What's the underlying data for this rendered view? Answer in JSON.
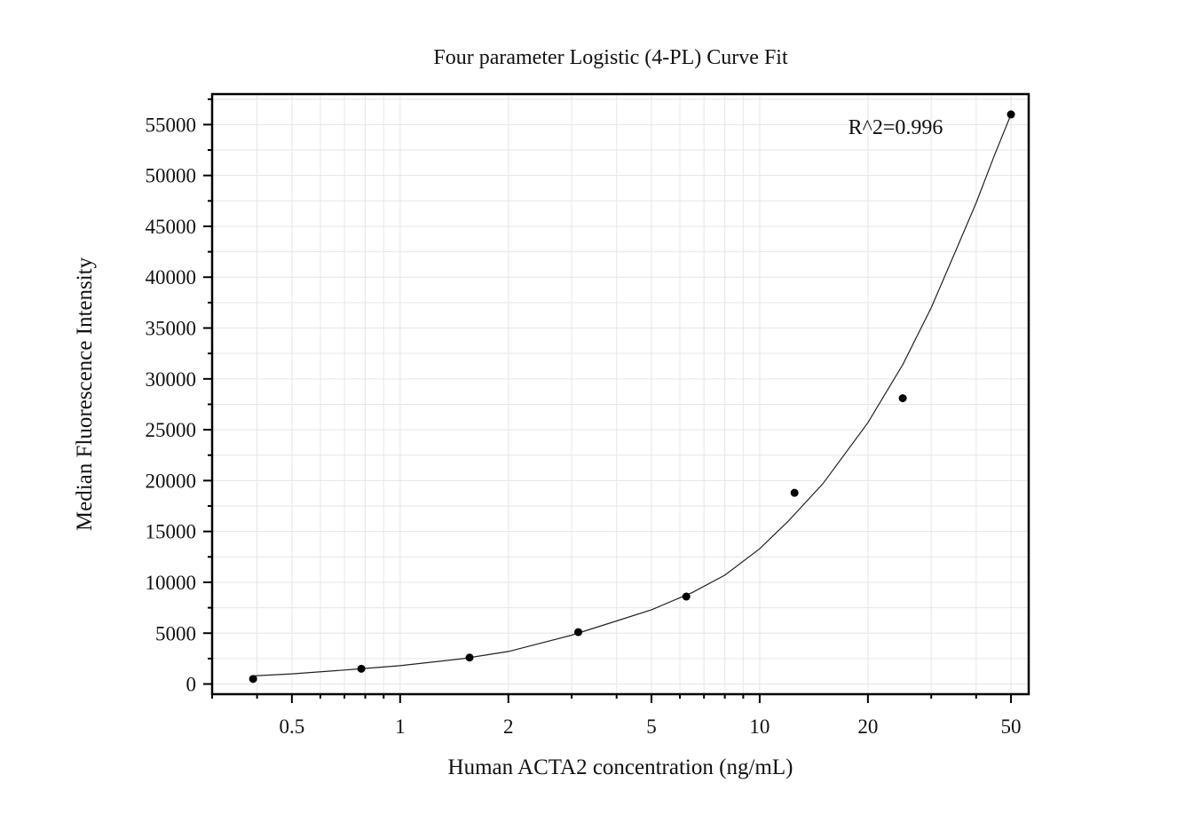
{
  "chart_data": {
    "type": "scatter",
    "title": "Four parameter Logistic (4-PL) Curve Fit",
    "xlabel": "Human ACTA2 concentration (ng/mL)",
    "ylabel": "Median Fluorescence Intensity",
    "x_scale": "log",
    "xlim": [
      0.3,
      56
    ],
    "ylim": [
      -1000,
      58000
    ],
    "x_ticks": [
      0.5,
      1,
      2,
      5,
      10,
      20,
      50
    ],
    "x_tick_labels": [
      "0.5",
      "1",
      "2",
      "5",
      "10",
      "20",
      "50"
    ],
    "y_ticks": [
      0,
      5000,
      10000,
      15000,
      20000,
      25000,
      30000,
      35000,
      40000,
      45000,
      50000,
      55000
    ],
    "y_tick_labels": [
      "0",
      "5000",
      "10000",
      "15000",
      "20000",
      "25000",
      "30000",
      "35000",
      "40000",
      "45000",
      "50000",
      "55000"
    ],
    "grid": true,
    "annotation": "R^2=0.996",
    "series": [
      {
        "points": [
          {
            "x": 0.39,
            "y": 500
          },
          {
            "x": 0.78,
            "y": 1500
          },
          {
            "x": 1.56,
            "y": 2600
          },
          {
            "x": 3.13,
            "y": 5100
          },
          {
            "x": 6.25,
            "y": 8600
          },
          {
            "x": 12.5,
            "y": 18800
          },
          {
            "x": 25,
            "y": 28100
          },
          {
            "x": 50,
            "y": 56000
          }
        ]
      }
    ],
    "fit_curve": [
      {
        "x": 0.39,
        "y": 800
      },
      {
        "x": 0.5,
        "y": 1000
      },
      {
        "x": 0.75,
        "y": 1450
      },
      {
        "x": 1,
        "y": 1800
      },
      {
        "x": 1.5,
        "y": 2500
      },
      {
        "x": 2,
        "y": 3200
      },
      {
        "x": 3,
        "y": 4800
      },
      {
        "x": 4,
        "y": 6200
      },
      {
        "x": 5,
        "y": 7300
      },
      {
        "x": 6.5,
        "y": 9000
      },
      {
        "x": 8,
        "y": 10700
      },
      {
        "x": 10,
        "y": 13300
      },
      {
        "x": 12,
        "y": 16000
      },
      {
        "x": 15,
        "y": 19700
      },
      {
        "x": 20,
        "y": 25700
      },
      {
        "x": 25,
        "y": 31400
      },
      {
        "x": 30,
        "y": 37000
      },
      {
        "x": 35,
        "y": 42500
      },
      {
        "x": 40,
        "y": 47300
      },
      {
        "x": 45,
        "y": 52000
      },
      {
        "x": 50,
        "y": 56000
      }
    ]
  }
}
